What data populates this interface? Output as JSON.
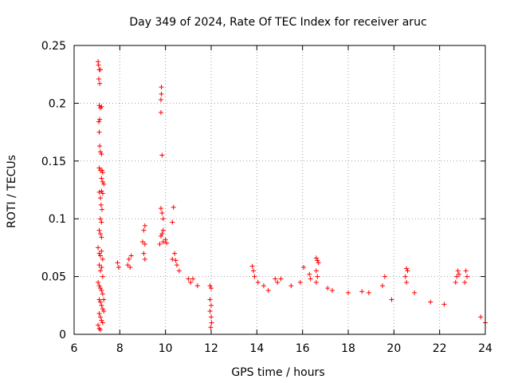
{
  "chart_data": {
    "type": "scatter",
    "title": "Day 349 of 2024, Rate Of TEC Index for receiver aruc",
    "xlabel": "GPS time / hours",
    "ylabel": "ROTI / TECUs",
    "xlim": [
      6,
      24
    ],
    "ylim": [
      0,
      0.25
    ],
    "xticks": [
      6,
      8,
      10,
      12,
      14,
      16,
      18,
      20,
      22,
      24
    ],
    "yticks": [
      0,
      0.05,
      0.1,
      0.15,
      0.2,
      0.25
    ],
    "xtick_labels": [
      "6",
      "8",
      "10",
      "12",
      "14",
      "16",
      "18",
      "20",
      "22",
      "24"
    ],
    "ytick_labels": [
      "0",
      "0.05",
      "0.1",
      "0.15",
      "0.2",
      "0.25"
    ],
    "grid": true,
    "marker": "plus",
    "color": "#ff0000",
    "series": [
      {
        "points": [
          [
            7.05,
            0.236
          ],
          [
            7.07,
            0.233
          ],
          [
            7.1,
            0.229
          ],
          [
            7.08,
            0.221
          ],
          [
            7.12,
            0.217
          ],
          [
            7.15,
            0.229
          ],
          [
            7.1,
            0.198
          ],
          [
            7.15,
            0.196
          ],
          [
            7.2,
            0.197
          ],
          [
            7.08,
            0.184
          ],
          [
            7.12,
            0.186
          ],
          [
            7.1,
            0.175
          ],
          [
            7.12,
            0.163
          ],
          [
            7.15,
            0.158
          ],
          [
            7.2,
            0.156
          ],
          [
            7.1,
            0.144
          ],
          [
            7.15,
            0.142
          ],
          [
            7.22,
            0.142
          ],
          [
            7.25,
            0.14
          ],
          [
            7.2,
            0.135
          ],
          [
            7.25,
            0.132
          ],
          [
            7.3,
            0.13
          ],
          [
            7.1,
            0.123
          ],
          [
            7.15,
            0.118
          ],
          [
            7.2,
            0.124
          ],
          [
            7.25,
            0.122
          ],
          [
            7.18,
            0.112
          ],
          [
            7.22,
            0.108
          ],
          [
            7.15,
            0.1
          ],
          [
            7.2,
            0.097
          ],
          [
            7.1,
            0.09
          ],
          [
            7.15,
            0.087
          ],
          [
            7.2,
            0.084
          ],
          [
            7.05,
            0.075
          ],
          [
            7.1,
            0.07
          ],
          [
            7.15,
            0.068
          ],
          [
            7.2,
            0.072
          ],
          [
            7.25,
            0.065
          ],
          [
            7.1,
            0.06
          ],
          [
            7.15,
            0.055
          ],
          [
            7.2,
            0.058
          ],
          [
            7.25,
            0.05
          ],
          [
            7.05,
            0.045
          ],
          [
            7.1,
            0.042
          ],
          [
            7.15,
            0.04
          ],
          [
            7.2,
            0.038
          ],
          [
            7.25,
            0.035
          ],
          [
            7.1,
            0.03
          ],
          [
            7.15,
            0.028
          ],
          [
            7.2,
            0.025
          ],
          [
            7.25,
            0.022
          ],
          [
            7.1,
            0.018
          ],
          [
            7.15,
            0.015
          ],
          [
            7.2,
            0.012
          ],
          [
            7.25,
            0.01
          ],
          [
            7.05,
            0.008
          ],
          [
            7.1,
            0.005
          ],
          [
            7.15,
            0.004
          ],
          [
            7.3,
            0.02
          ],
          [
            7.3,
            0.03
          ],
          [
            9.82,
            0.214
          ],
          [
            9.82,
            0.208
          ],
          [
            9.8,
            0.203
          ],
          [
            9.8,
            0.192
          ],
          [
            9.85,
            0.155
          ],
          [
            10.35,
            0.11
          ],
          [
            9.8,
            0.109
          ],
          [
            9.85,
            0.105
          ],
          [
            9.9,
            0.1
          ],
          [
            10.3,
            0.097
          ],
          [
            9.9,
            0.09
          ],
          [
            9.85,
            0.087
          ],
          [
            9.8,
            0.085
          ],
          [
            10.0,
            0.082
          ],
          [
            9.9,
            0.08
          ],
          [
            10.05,
            0.079
          ],
          [
            9.75,
            0.078
          ],
          [
            9.1,
            0.094
          ],
          [
            9.05,
            0.09
          ],
          [
            9.0,
            0.08
          ],
          [
            9.1,
            0.078
          ],
          [
            9.05,
            0.07
          ],
          [
            9.1,
            0.065
          ],
          [
            8.5,
            0.068
          ],
          [
            8.4,
            0.065
          ],
          [
            8.35,
            0.06
          ],
          [
            8.45,
            0.058
          ],
          [
            7.9,
            0.062
          ],
          [
            7.95,
            0.058
          ],
          [
            10.4,
            0.07
          ],
          [
            10.45,
            0.064
          ],
          [
            10.5,
            0.06
          ],
          [
            10.3,
            0.065
          ],
          [
            10.6,
            0.055
          ],
          [
            11.0,
            0.048
          ],
          [
            11.1,
            0.045
          ],
          [
            11.2,
            0.048
          ],
          [
            11.4,
            0.042
          ],
          [
            11.95,
            0.042
          ],
          [
            12.0,
            0.04
          ],
          [
            11.95,
            0.03
          ],
          [
            12.0,
            0.025
          ],
          [
            11.95,
            0.02
          ],
          [
            12.0,
            0.015
          ],
          [
            12.02,
            0.01
          ],
          [
            11.98,
            0.006
          ],
          [
            13.8,
            0.059
          ],
          [
            13.85,
            0.055
          ],
          [
            13.9,
            0.05
          ],
          [
            14.05,
            0.045
          ],
          [
            14.3,
            0.042
          ],
          [
            14.5,
            0.038
          ],
          [
            14.8,
            0.048
          ],
          [
            14.9,
            0.045
          ],
          [
            15.05,
            0.048
          ],
          [
            15.5,
            0.042
          ],
          [
            15.9,
            0.045
          ],
          [
            16.05,
            0.058
          ],
          [
            16.3,
            0.052
          ],
          [
            16.35,
            0.048
          ],
          [
            16.6,
            0.066
          ],
          [
            16.65,
            0.064
          ],
          [
            16.7,
            0.062
          ],
          [
            16.6,
            0.055
          ],
          [
            16.65,
            0.05
          ],
          [
            16.6,
            0.045
          ],
          [
            17.1,
            0.04
          ],
          [
            17.3,
            0.038
          ],
          [
            18.0,
            0.036
          ],
          [
            18.6,
            0.037
          ],
          [
            18.9,
            0.036
          ],
          [
            19.6,
            0.05
          ],
          [
            19.5,
            0.042
          ],
          [
            19.9,
            0.03
          ],
          [
            20.55,
            0.057
          ],
          [
            20.6,
            0.055
          ],
          [
            20.5,
            0.05
          ],
          [
            20.55,
            0.045
          ],
          [
            20.9,
            0.036
          ],
          [
            21.6,
            0.028
          ],
          [
            22.2,
            0.026
          ],
          [
            22.7,
            0.045
          ],
          [
            22.8,
            0.055
          ],
          [
            22.85,
            0.052
          ],
          [
            22.75,
            0.05
          ],
          [
            23.15,
            0.055
          ],
          [
            23.2,
            0.05
          ],
          [
            23.1,
            0.045
          ],
          [
            23.8,
            0.015
          ],
          [
            24.0,
            0.01
          ]
        ]
      }
    ]
  }
}
